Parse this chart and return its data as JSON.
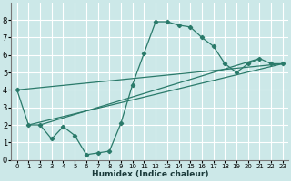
{
  "xlabel": "Humidex (Indice chaleur)",
  "bg_color": "#cce8e8",
  "grid_color": "#ffffff",
  "line_color": "#2a7a6a",
  "xlim": [
    -0.5,
    23.5
  ],
  "ylim": [
    0,
    9
  ],
  "xticks": [
    0,
    1,
    2,
    3,
    4,
    5,
    6,
    7,
    8,
    9,
    10,
    11,
    12,
    13,
    14,
    15,
    16,
    17,
    18,
    19,
    20,
    21,
    22,
    23
  ],
  "yticks": [
    0,
    1,
    2,
    3,
    4,
    5,
    6,
    7,
    8
  ],
  "series": [
    {
      "x": [
        0,
        1,
        2,
        3,
        4,
        5,
        6,
        7,
        8,
        9,
        10,
        11,
        12,
        13,
        14,
        15,
        16,
        17,
        18,
        19,
        20,
        21,
        22,
        23
      ],
      "y": [
        4,
        2,
        2,
        1.2,
        1.9,
        1.4,
        0.3,
        0.4,
        0.5,
        2.1,
        4.3,
        6.1,
        7.9,
        7.9,
        7.7,
        7.6,
        7.0,
        6.5,
        5.5,
        5.0,
        5.5,
        5.8,
        5.5,
        5.5
      ]
    },
    {
      "x": [
        0,
        23
      ],
      "y": [
        4,
        5.5
      ]
    },
    {
      "x": [
        1,
        23
      ],
      "y": [
        2,
        5.5
      ]
    },
    {
      "x": [
        2,
        21
      ],
      "y": [
        2,
        5.8
      ]
    }
  ]
}
